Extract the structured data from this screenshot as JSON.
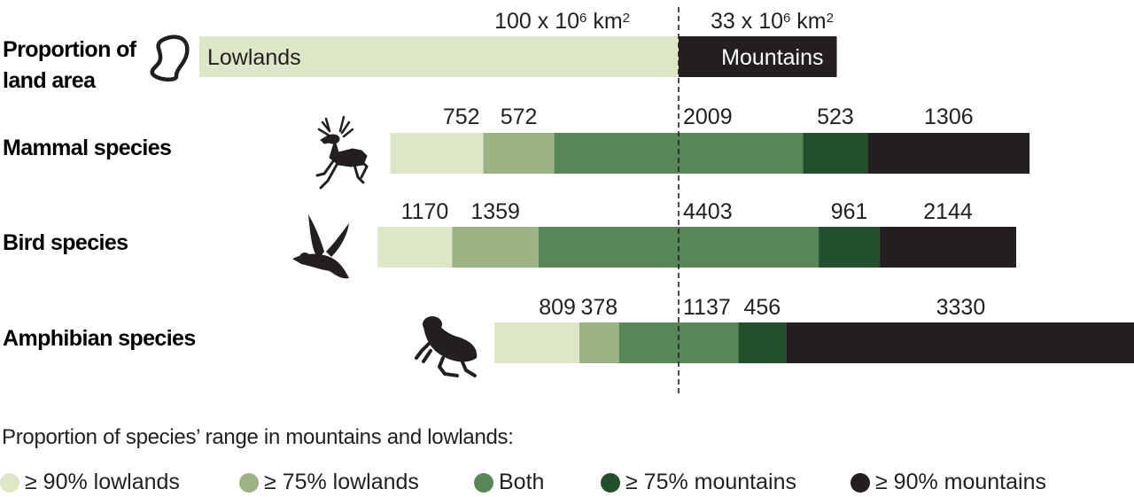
{
  "colors": {
    "lowlands90": "#dde7c7",
    "lowlands75": "#9cb386",
    "both": "#588657",
    "mountains75": "#234f2b",
    "mountains90": "#231f20",
    "text": "#231f20"
  },
  "chart_data": {
    "type": "bar",
    "orientation": "horizontal",
    "stacked": true,
    "divider": "dashed vertical line separating lowland and mountain portions",
    "land_area": {
      "label": "Proportion of land area",
      "segments": [
        {
          "name": "Lowlands",
          "value": 100,
          "value_label": "100 x 10",
          "exp": "6",
          "unit_label": " km",
          "unit_exp": "2"
        },
        {
          "name": "Mountains",
          "value": 33,
          "value_label": "33 x 10",
          "exp": "6",
          "unit_label": " km",
          "unit_exp": "2"
        }
      ]
    },
    "categories": [
      "Mammal species",
      "Bird species",
      "Amphibian species"
    ],
    "series": [
      {
        "name": "≥ 90% lowlands",
        "values": [
          752,
          1170,
          809
        ]
      },
      {
        "name": "≥ 75% lowlands",
        "values": [
          572,
          1359,
          378
        ]
      },
      {
        "name": "Both",
        "values": [
          2009,
          4403,
          1137
        ]
      },
      {
        "name": "≥ 75% mountains",
        "values": [
          523,
          961,
          456
        ]
      },
      {
        "name": "≥ 90% mountains",
        "values": [
          1306,
          2144,
          3330
        ]
      }
    ],
    "icons": [
      "deer-icon",
      "bird-icon",
      "frog-icon"
    ],
    "legend_title": "Proportion of species’ range in mountains and lowlands:",
    "legend_position": "bottom"
  }
}
